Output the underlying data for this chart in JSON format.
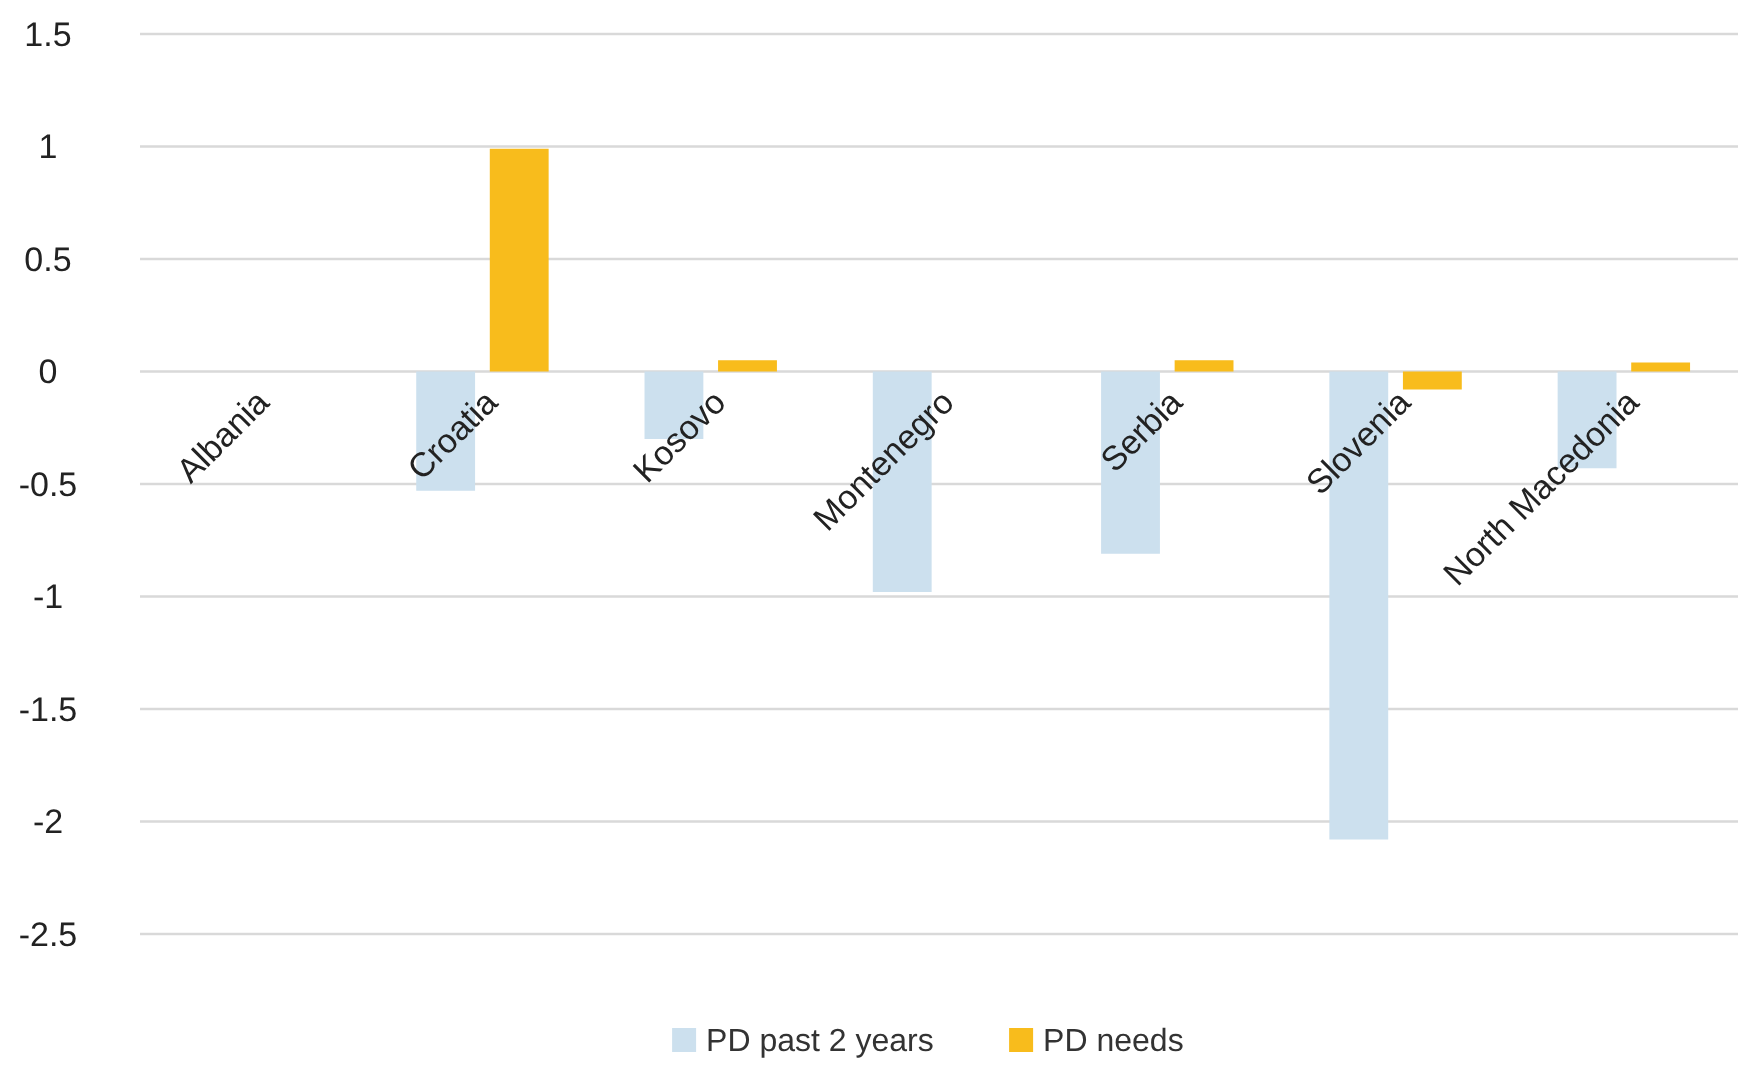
{
  "chart_data": {
    "type": "bar",
    "categories": [
      "Albania",
      "Croatia",
      "Kosovo",
      "Montenegro",
      "Serbia",
      "Slovenia",
      "North Macedonia"
    ],
    "series": [
      {
        "name": "PD past 2 years",
        "color": "#cce0ee",
        "values": [
          0,
          -0.53,
          -0.3,
          -0.98,
          -0.81,
          -2.08,
          -0.43
        ]
      },
      {
        "name": "PD needs",
        "color": "#f8bc1c",
        "values": [
          0,
          0.99,
          0.05,
          0,
          0.05,
          -0.08,
          0.04
        ]
      }
    ],
    "ylim": [
      -2.5,
      1.5
    ],
    "yticks": [
      1.5,
      1,
      0.5,
      0,
      -0.5,
      -1,
      -1.5,
      -2,
      -2.5
    ],
    "grid": "y",
    "legend": "bottom"
  }
}
